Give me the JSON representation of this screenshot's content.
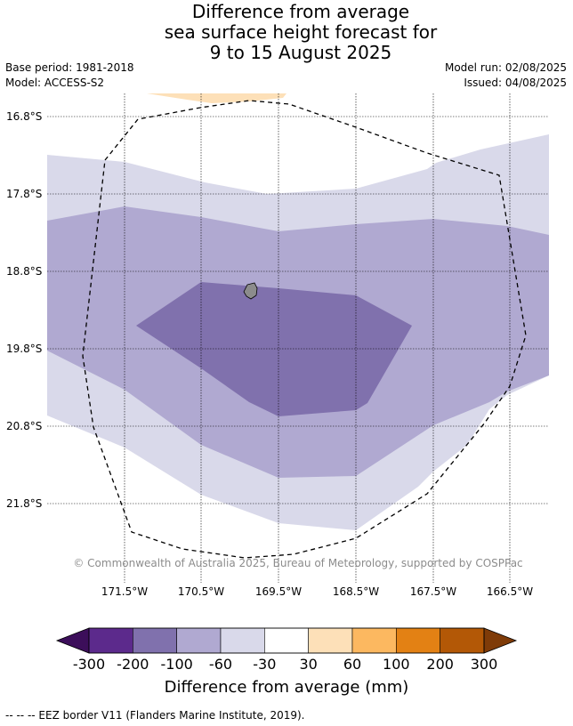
{
  "title": {
    "line1": "Difference from average",
    "line2": "sea surface height forecast for",
    "line3": "9 to 15 August 2025"
  },
  "meta": {
    "base_period": "Base period: 1981-2018",
    "model": "Model: ACCESS-S2",
    "model_run": "Model run: 02/08/2025",
    "issued": "Issued: 04/08/2025"
  },
  "map": {
    "lat_labels": [
      "16.8°S",
      "17.8°S",
      "18.8°S",
      "19.8°S",
      "20.8°S",
      "21.8°S"
    ],
    "lon_labels": [
      "171.5°W",
      "170.5°W",
      "169.5°W",
      "168.5°W",
      "167.5°W",
      "166.5°W"
    ],
    "copyright": "© Commonwealth of Australia 2025, Bureau of Meteorology, supported by COSPPac",
    "colors": {
      "band_30_60": "#fde0b8",
      "band_m30_m60": "#d9d9ea",
      "band_m60_m100": "#b0a9d1",
      "band_m100_m200": "#8071ad",
      "island": "#8c8c8c"
    }
  },
  "colorbar": {
    "ticks": [
      "-300",
      "-200",
      "-100",
      "-60",
      "-30",
      "30",
      "60",
      "100",
      "200",
      "300"
    ],
    "colors": [
      "#5c2a8c",
      "#8071ad",
      "#b0a9d1",
      "#d9d9ea",
      "#ffffff",
      "#fde0b8",
      "#fcb860",
      "#e38114",
      "#b35806"
    ],
    "extend_low_color": "#3c0e5a",
    "extend_high_color": "#7f3b08",
    "label": "Difference from average (mm)"
  },
  "footnote": "-- -- -- EEZ border V11 (Flanders Marine Institute, 2019)."
}
